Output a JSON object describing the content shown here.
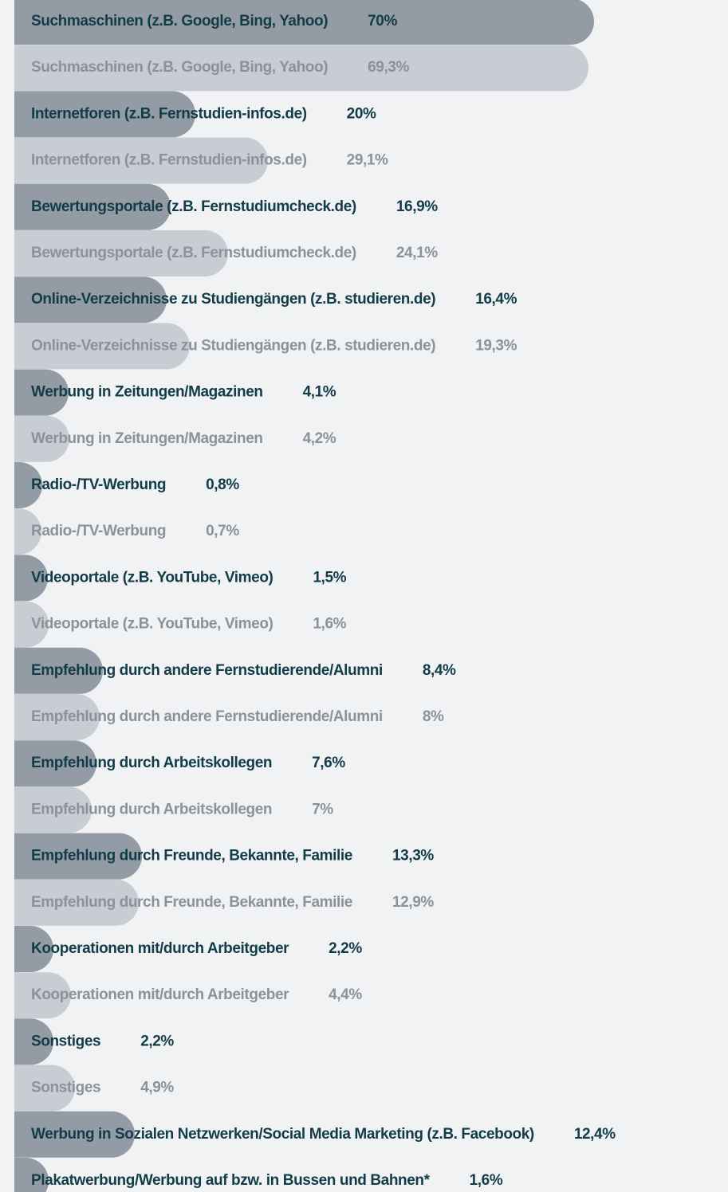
{
  "chart_data": {
    "type": "bar",
    "categories": [
      "Suchmaschinen (z.B. Google, Bing, Yahoo)",
      "Internetforen (z.B. Fernstudien-infos.de)",
      "Bewertungsportale (z.B. Fernstudiumcheck.de)",
      "Online-Verzeichnisse zu Studiengängen (z.B. studieren.de)",
      "Werbung in Zeitungen/Magazinen",
      "Radio-/TV-Werbung",
      "Videoportale (z.B. YouTube, Vimeo)",
      "Empfehlung durch andere Fernstudierende/Alumni",
      "Empfehlung durch Arbeitskollegen",
      "Empfehlung durch Freunde, Bekannte, Familie",
      "Kooperationen mit/durch Arbeitgeber",
      "Sonstiges",
      "Werbung in Sozialen Netzwerken/Social Media Marketing (z.B. Facebook)",
      "Plakatwerbung/Werbung auf bzw. in Bussen und Bahnen*"
    ],
    "series": [
      {
        "color": "#939ba5",
        "values": [
          70,
          20,
          16.9,
          16.4,
          4.1,
          0.8,
          1.5,
          8.4,
          7.6,
          13.3,
          2.2,
          2.2,
          12.4,
          1.6
        ],
        "value_labels": [
          "70%",
          "20%",
          "16,9%",
          "16,4%",
          "4,1%",
          "0,8%",
          "1,5%",
          "8,4%",
          "7,6%",
          "13,3%",
          "2,2%",
          "2,2%",
          "12,4%",
          "1,6%"
        ]
      },
      {
        "color": "#c8ccd3",
        "values": [
          69.3,
          29.1,
          24.1,
          19.3,
          4.2,
          0.7,
          1.6,
          8,
          7,
          12.9,
          4.4,
          4.9,
          null,
          null
        ],
        "value_labels": [
          "69,3%",
          "29,1%",
          "24,1%",
          "19,3%",
          "4,2%",
          "0,7%",
          "1,6%",
          "8%",
          "7%",
          "12,9%",
          "4,4%",
          "4,9%",
          null,
          null
        ]
      }
    ]
  }
}
